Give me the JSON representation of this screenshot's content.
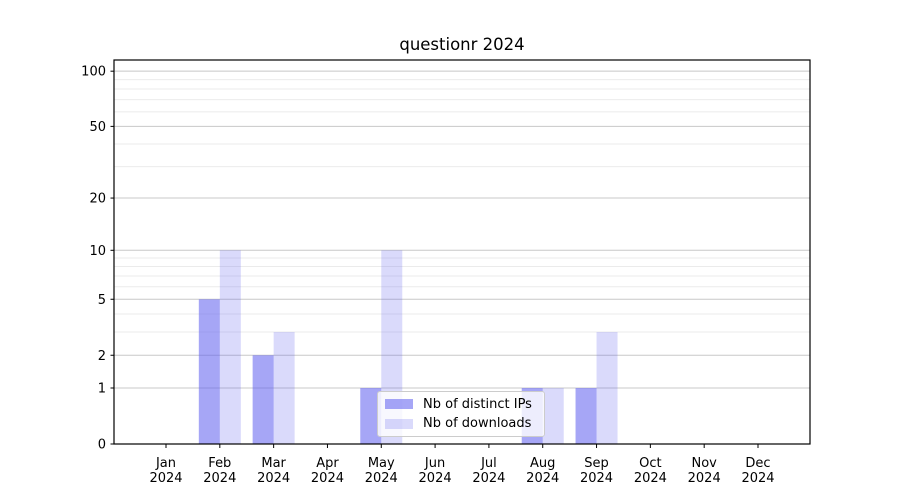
{
  "chart_data": {
    "type": "bar",
    "title": "questionr 2024",
    "x_months": [
      "Jan",
      "Feb",
      "Mar",
      "Apr",
      "May",
      "Jun",
      "Jul",
      "Aug",
      "Sep",
      "Oct",
      "Nov",
      "Dec"
    ],
    "x_year": "2024",
    "series": [
      {
        "name": "Nb of distinct IPs",
        "color": "rgba(102,102,240,0.58)",
        "values": [
          0,
          5,
          2,
          0,
          1,
          0,
          0,
          1,
          1,
          0,
          0,
          0
        ]
      },
      {
        "name": "Nb of downloads",
        "color": "rgba(102,102,240,0.24)",
        "values": [
          0,
          10,
          3,
          0,
          10,
          0,
          0,
          1,
          3,
          0,
          0,
          0
        ]
      }
    ],
    "yscale": "log1p",
    "ylim": [
      0,
      115
    ],
    "yticks_major": [
      0,
      1,
      2,
      5,
      10,
      20,
      50,
      100
    ],
    "yticks_minor": [
      3,
      4,
      6,
      7,
      8,
      9,
      30,
      40,
      60,
      70,
      80,
      90
    ],
    "grid": "horizontal",
    "legend_position": "lower center"
  },
  "colors": {
    "grid_major": "#c8c8c8",
    "grid_minor": "#ebebeb",
    "spine": "#000000",
    "tick_text": "#000000"
  }
}
